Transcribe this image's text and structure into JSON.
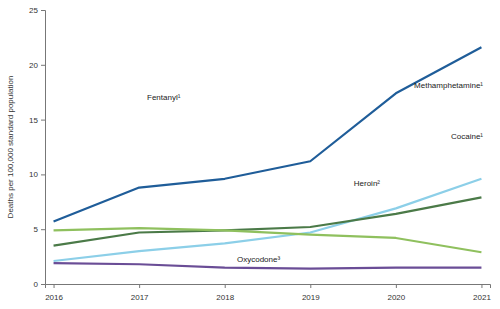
{
  "chart_data": {
    "type": "line",
    "y_label": "Deaths per 100,000 standard population",
    "categories": [
      "2016",
      "2017",
      "2018",
      "2019",
      "2020",
      "2021"
    ],
    "series": [
      {
        "name": "Fentanyl¹",
        "color": "#1f5d99",
        "values": [
          5.7,
          8.8,
          9.6,
          11.2,
          17.4,
          21.6
        ]
      },
      {
        "name": "Methamphetamine¹",
        "color": "#8ccfe8",
        "values": [
          2.1,
          3.0,
          3.7,
          4.7,
          6.9,
          9.6
        ]
      },
      {
        "name": "Cocaine¹",
        "color": "#4b7a48",
        "values": [
          3.5,
          4.7,
          4.9,
          5.2,
          6.4,
          7.9
        ]
      },
      {
        "name": "Heroin²",
        "color": "#8fc05e",
        "values": [
          4.9,
          5.1,
          4.9,
          4.5,
          4.2,
          2.9
        ]
      },
      {
        "name": "Oxycodone³",
        "color": "#6a4d96",
        "values": [
          1.9,
          1.8,
          1.5,
          1.4,
          1.5,
          1.5
        ]
      }
    ],
    "ylim": [
      0,
      25
    ],
    "yticks": [
      0,
      5,
      10,
      15,
      20,
      25
    ],
    "grid": false
  }
}
